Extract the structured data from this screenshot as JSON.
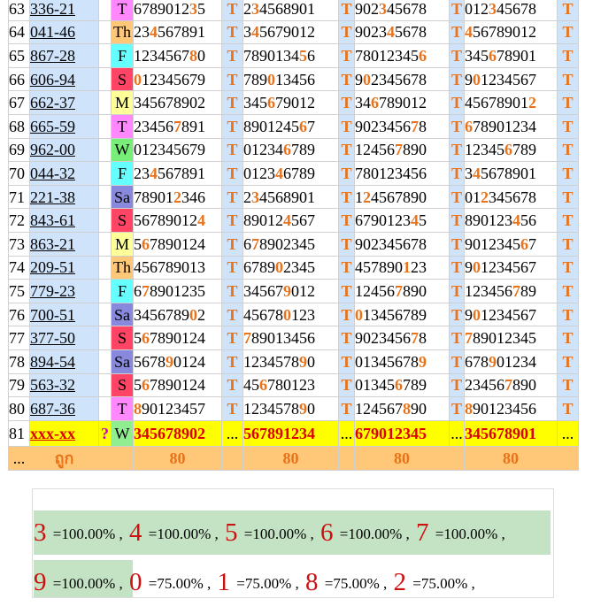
{
  "rows": [
    {
      "i": "63",
      "c": "336-21",
      "d": "T",
      "dc": "#ff88ff",
      "n": [
        [
          "6789012",
          "3",
          "5"
        ],
        [
          "2",
          "3",
          "4568901"
        ],
        [
          "902",
          "3",
          "45678"
        ],
        [
          "012",
          "3",
          "45678"
        ]
      ]
    },
    {
      "i": "64",
      "c": "041-46",
      "d": "Th",
      "dc": "#ffc878",
      "n": [
        [
          "23",
          "4",
          "567891"
        ],
        [
          "3",
          "4",
          "5679012"
        ],
        [
          "9023",
          "4",
          "5678"
        ],
        [
          "",
          "4",
          "56789012"
        ]
      ]
    },
    {
      "i": "65",
      "c": "867-28",
      "d": "F",
      "dc": "#66ffff",
      "n": [
        [
          "1234567",
          "8",
          "0"
        ],
        [
          "7890134",
          "5",
          "6"
        ],
        [
          "78012345",
          "6",
          ""
        ],
        [
          "345",
          "6",
          "78901"
        ]
      ]
    },
    {
      "i": "66",
      "c": "606-94",
      "d": "S",
      "dc": "#ff4466",
      "n": [
        [
          "",
          "0",
          "12345679"
        ],
        [
          "789",
          "0",
          "13456"
        ],
        [
          "9",
          "0",
          "2345678"
        ],
        [
          "9",
          "0",
          "1234567"
        ]
      ]
    },
    {
      "i": "67",
      "c": "662-37",
      "d": "M",
      "dc": "#ffff99",
      "n": [
        [
          "345678902",
          "",
          ""
        ],
        [
          "345",
          "6",
          "79012"
        ],
        [
          "34",
          "6",
          "789012"
        ],
        [
          "45678901",
          "2",
          ""
        ]
      ]
    },
    {
      "i": "68",
      "c": "665-59",
      "d": "T",
      "dc": "#ff88ff",
      "n": [
        [
          "23456",
          "7",
          "891"
        ],
        [
          "8901245",
          "6",
          "7"
        ],
        [
          "9023456",
          "7",
          "8"
        ],
        [
          "",
          "6",
          "78901234"
        ]
      ]
    },
    {
      "i": "69",
      "c": "962-00",
      "d": "W",
      "dc": "#77ee77",
      "n": [
        [
          "012345679",
          "",
          ""
        ],
        [
          "01234",
          "6",
          "789"
        ],
        [
          "12456",
          "7",
          "890"
        ],
        [
          "12345",
          "6",
          "789"
        ]
      ]
    },
    {
      "i": "70",
      "c": "044-32",
      "d": "F",
      "dc": "#66ffff",
      "n": [
        [
          "23",
          "4",
          "567891"
        ],
        [
          "0123",
          "4",
          "6789"
        ],
        [
          "780123456",
          "",
          ""
        ],
        [
          "3",
          "4",
          "5678901"
        ]
      ]
    },
    {
      "i": "71",
      "c": "221-38",
      "d": "Sa",
      "dc": "#8888dd",
      "n": [
        [
          "78901",
          "2",
          "346"
        ],
        [
          "2",
          "3",
          "4568901"
        ],
        [
          "1",
          "2",
          "4567890"
        ],
        [
          "01",
          "2",
          "345678"
        ]
      ]
    },
    {
      "i": "72",
      "c": "843-61",
      "d": "S",
      "dc": "#ff4466",
      "n": [
        [
          "56789012",
          "4",
          ""
        ],
        [
          "89012",
          "4",
          "567"
        ],
        [
          "6790123",
          "4",
          "5"
        ],
        [
          "890123",
          "4",
          "56"
        ]
      ]
    },
    {
      "i": "73",
      "c": "863-21",
      "d": "M",
      "dc": "#ffff99",
      "n": [
        [
          "5",
          "6",
          "7890124"
        ],
        [
          "6",
          "7",
          "8902345"
        ],
        [
          "902345678",
          "",
          ""
        ],
        [
          "9012345",
          "6",
          "7"
        ]
      ]
    },
    {
      "i": "74",
      "c": "209-51",
      "d": "Th",
      "dc": "#ffc878",
      "n": [
        [
          "456789013",
          "",
          ""
        ],
        [
          "6789",
          "0",
          "2345"
        ],
        [
          "457890",
          "1",
          "23"
        ],
        [
          "9",
          "0",
          "1234567"
        ]
      ]
    },
    {
      "i": "75",
      "c": "779-23",
      "d": "F",
      "dc": "#66ffff",
      "n": [
        [
          "6",
          "7",
          "8901235"
        ],
        [
          "34567",
          "9",
          "012"
        ],
        [
          "12456",
          "7",
          "890"
        ],
        [
          "123456",
          "7",
          "89"
        ]
      ]
    },
    {
      "i": "76",
      "c": "700-51",
      "d": "Sa",
      "dc": "#8888dd",
      "n": [
        [
          "3456789",
          "0",
          "2"
        ],
        [
          "45678",
          "0",
          "123"
        ],
        [
          "",
          "0",
          "13456789"
        ],
        [
          "9",
          "0",
          "1234567"
        ]
      ]
    },
    {
      "i": "77",
      "c": "377-50",
      "d": "S",
      "dc": "#ff4466",
      "n": [
        [
          "5",
          "6",
          "7890124"
        ],
        [
          "",
          "7",
          "89013456"
        ],
        [
          "9023456",
          "7",
          "8"
        ],
        [
          "",
          "7",
          "89012345"
        ]
      ]
    },
    {
      "i": "78",
      "c": "894-54",
      "d": "Sa",
      "dc": "#8888dd",
      "n": [
        [
          "5678",
          "9",
          "0124"
        ],
        [
          "1234578",
          "9",
          "0"
        ],
        [
          "01345678",
          "9",
          ""
        ],
        [
          "678",
          "9",
          "01234"
        ]
      ]
    },
    {
      "i": "79",
      "c": "563-32",
      "d": "S",
      "dc": "#ff4466",
      "n": [
        [
          "5",
          "6",
          "7890124"
        ],
        [
          "45",
          "6",
          "780123"
        ],
        [
          "01345",
          "6",
          "789"
        ],
        [
          "23456",
          "7",
          "890"
        ]
      ]
    },
    {
      "i": "80",
      "c": "687-36",
      "d": "T",
      "dc": "#ff88ff",
      "n": [
        [
          "",
          "8",
          "90123457"
        ],
        [
          "1234578",
          "9",
          "0"
        ],
        [
          "124567",
          "8",
          "90"
        ],
        [
          "",
          "8",
          "90123456"
        ]
      ]
    }
  ],
  "summary": {
    "i": "81",
    "c": "xxx-xx",
    "q": "?",
    "d": "W",
    "n": [
      "345678902",
      "567891234",
      "679012345",
      "345678901"
    ],
    "dots": "...",
    "t": "T"
  },
  "totals": {
    "i": "...",
    "label": "ถูก",
    "vals": [
      "80",
      "80",
      "80",
      "80"
    ]
  },
  "stats_line1": [
    {
      "d": "3",
      "p": "=100.00%"
    },
    {
      "d": "4",
      "p": "=100.00%"
    },
    {
      "d": "5",
      "p": "=100.00%"
    },
    {
      "d": "6",
      "p": "=100.00%"
    },
    {
      "d": "7",
      "p": "=100.00%"
    }
  ],
  "stats_line2": [
    {
      "d": "9",
      "p": "=100.00%"
    },
    {
      "d": "0",
      "p": "=75.00%"
    },
    {
      "d": "1",
      "p": "=75.00%"
    },
    {
      "d": "8",
      "p": "=75.00%"
    },
    {
      "d": "2",
      "p": "=75.00%"
    }
  ],
  "sep": ",",
  "t_mark": "T"
}
